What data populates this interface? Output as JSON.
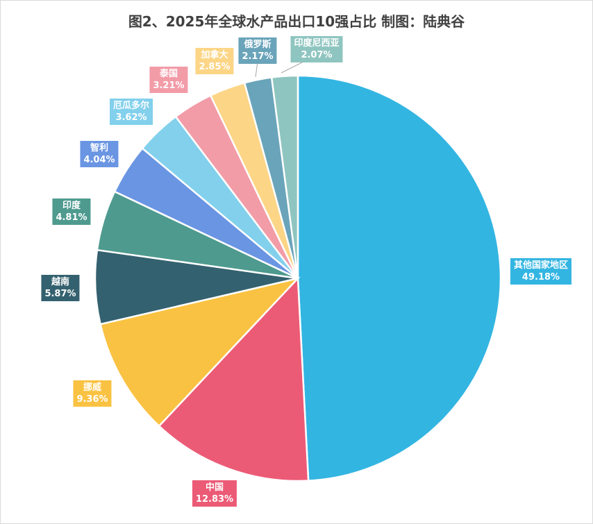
{
  "chart_data": {
    "type": "pie",
    "title": "图2、2025年全球水产品出口10强占比 制图：陆典谷",
    "start_angle": "top",
    "direction": "clockwise",
    "slices": [
      {
        "label": "其他国家地区",
        "value": 49.18,
        "display": "49.18%",
        "color": "#33B5E2"
      },
      {
        "label": "中国",
        "value": 12.83,
        "display": "12.83%",
        "color": "#EC5B76"
      },
      {
        "label": "挪威",
        "value": 9.36,
        "display": "9.36%",
        "color": "#FAC242"
      },
      {
        "label": "越南",
        "value": 5.87,
        "display": "5.87%",
        "color": "#34616F"
      },
      {
        "label": "印度",
        "value": 4.81,
        "display": "4.81%",
        "color": "#4E9A8F"
      },
      {
        "label": "智利",
        "value": 4.04,
        "display": "4.04%",
        "color": "#6A95E3"
      },
      {
        "label": "厄瓜多尔",
        "value": 3.62,
        "display": "3.62%",
        "color": "#82D0EC"
      },
      {
        "label": "泰国",
        "value": 3.21,
        "display": "3.21%",
        "color": "#F29CA8"
      },
      {
        "label": "加拿大",
        "value": 2.85,
        "display": "2.85%",
        "color": "#FCD586"
      },
      {
        "label": "俄罗斯",
        "value": 2.17,
        "display": "2.17%",
        "color": "#6AA4BA"
      },
      {
        "label": "印度尼西亚",
        "value": 2.07,
        "display": "2.07%",
        "color": "#8FC5C0"
      }
    ]
  }
}
